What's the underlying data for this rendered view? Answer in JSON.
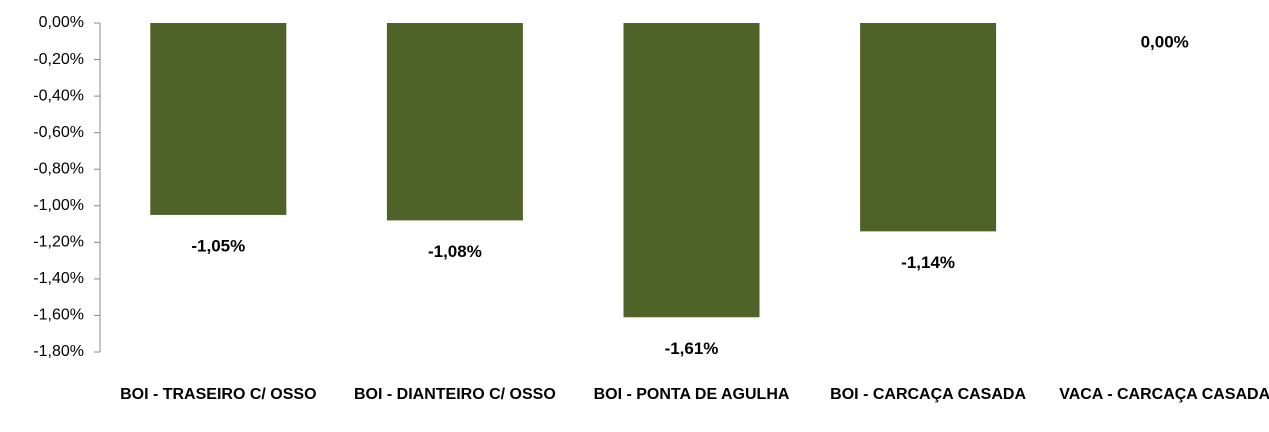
{
  "chart_data": {
    "type": "bar",
    "categories": [
      "BOI - TRASEIRO C/ OSSO",
      "BOI - DIANTEIRO C/ OSSO",
      "BOI - PONTA DE AGULHA",
      "BOI - CARCAÇA CASADA",
      "VACA - CARCAÇA CASADA"
    ],
    "values": [
      -1.05,
      -1.08,
      -1.61,
      -1.14,
      0.0
    ],
    "value_labels": [
      "-1,05%",
      "-1,08%",
      "-1,61%",
      "-1,14%",
      "0,00%"
    ],
    "color": "#4f6228",
    "ylim": [
      -1.8,
      0
    ],
    "yticks": [
      {
        "value": 0,
        "label": "0,00%"
      },
      {
        "value": -0.2,
        "label": "-0,20%"
      },
      {
        "value": -0.4,
        "label": "-0,40%"
      },
      {
        "value": -0.6,
        "label": "-0,60%"
      },
      {
        "value": -0.8,
        "label": "-0,80%"
      },
      {
        "value": -1.0,
        "label": "-1,00%"
      },
      {
        "value": -1.2,
        "label": "-1,20%"
      },
      {
        "value": -1.4,
        "label": "-1,40%"
      },
      {
        "value": -1.6,
        "label": "-1,60%"
      },
      {
        "value": -1.8,
        "label": "-1,80%"
      }
    ],
    "grid": false
  }
}
